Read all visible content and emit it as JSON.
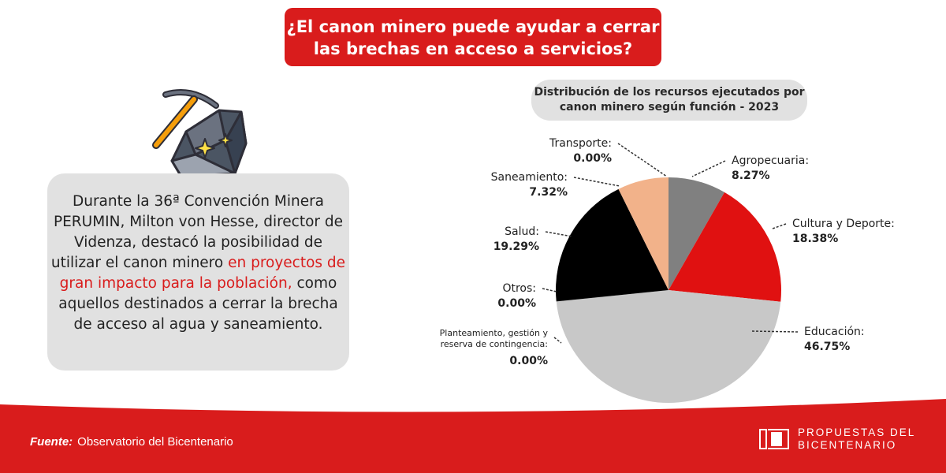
{
  "header": {
    "title_line1": "¿El canon minero puede ayudar a cerrar",
    "title_line2": "las brechas en acceso a servicios?"
  },
  "info_card": {
    "text_part1": "Durante la 36ª Convención Minera PERUMIN, Milton von Hesse, director de Videnza, destacó la posibilidad de utilizar el canon minero ",
    "text_highlight": "en proyectos de gran impacto para la población,",
    "text_part2": " como aquellos destinados a cerrar la brecha de acceso al agua y saneamiento."
  },
  "chart_header": {
    "line1": "Distribución de los recursos ejecutados por",
    "line2": "canon minero según función - 2023"
  },
  "chart_data": {
    "type": "pie",
    "title": "Distribución de los recursos ejecutados por canon minero según función - 2023",
    "slices": [
      {
        "label": "Agropecuaria:",
        "value": 8.27,
        "display": "8.27%",
        "color": "#808080"
      },
      {
        "label": "Cultura y Deporte:",
        "value": 18.38,
        "display": "18.38%",
        "color": "#e01111"
      },
      {
        "label": "Educación:",
        "value": 46.75,
        "display": "46.75%",
        "color": "#c8c8c8"
      },
      {
        "label": "Planteamiento, gestión y reserva de contingencia:",
        "value": 0.0,
        "display": "0.00%",
        "color": "#c8c8c8"
      },
      {
        "label": "Otros:",
        "value": 0.0,
        "display": "0.00%",
        "color": "#c8c8c8"
      },
      {
        "label": "Salud:",
        "value": 19.29,
        "display": "19.29%",
        "color": "#000000"
      },
      {
        "label": "Saneamiento:",
        "value": 7.32,
        "display": "7.32%",
        "color": "#f2b28a"
      },
      {
        "label": "Transporte:",
        "value": 0.0,
        "display": "0.00%",
        "color": "#f2b28a"
      }
    ]
  },
  "footer": {
    "source_label": "Fuente:",
    "source_text": "Observatorio del Bicentenario",
    "brand_line1": "PROPUESTAS DEL",
    "brand_line2": "BICENTENARIO",
    "background_color": "#d91c1c"
  }
}
